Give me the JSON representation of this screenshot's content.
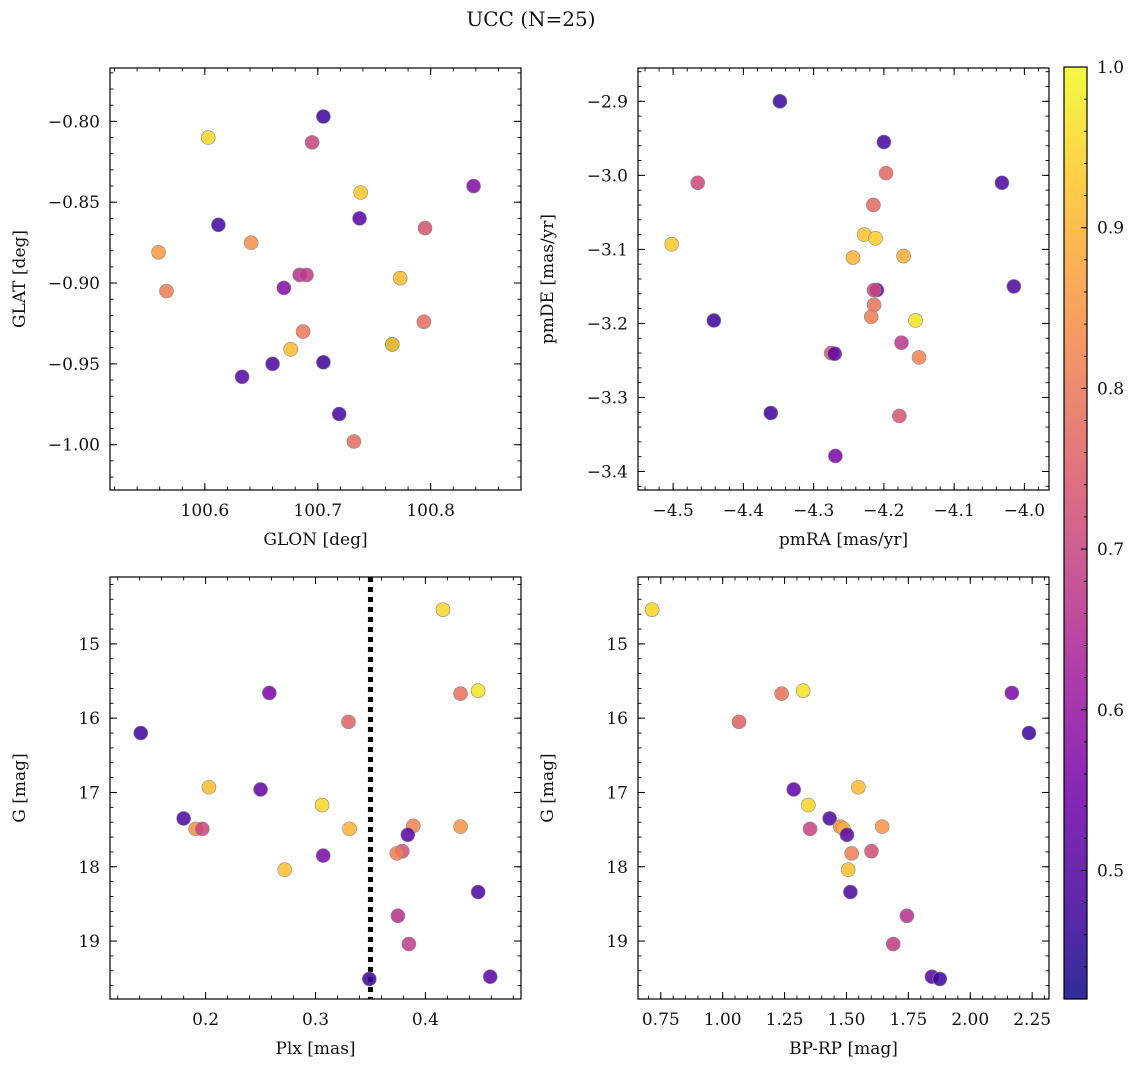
{
  "title": "UCC (N=25)",
  "colorbar": {
    "min": 0.42,
    "max": 1.0,
    "ticks": [
      0.5,
      0.6,
      0.7,
      0.8,
      0.9,
      1.0
    ],
    "tick_labels": [
      "0.5",
      "0.6",
      "0.7",
      "0.8",
      "0.9",
      "1.0"
    ],
    "colormap": "plasma",
    "stops": [
      "#0d0887",
      "#46039f",
      "#7201a8",
      "#9c179e",
      "#bd3786",
      "#d8576b",
      "#ed7953",
      "#fb9f3a",
      "#fdca26",
      "#f0f921"
    ]
  },
  "chart_data": [
    {
      "type": "scatter",
      "name": "position",
      "xlabel": "GLON [deg]",
      "ylabel": "GLAT [deg]",
      "xlim": [
        100.516,
        100.88
      ],
      "ylim": [
        -1.028,
        -0.767
      ],
      "xticks": [
        100.6,
        100.7,
        100.8
      ],
      "xtick_labels": [
        "100.6",
        "100.7",
        "100.8"
      ],
      "yticks": [
        -1.0,
        -0.95,
        -0.9,
        -0.85,
        -0.8
      ],
      "ytick_labels": [
        "−1.00",
        "−0.95",
        "−0.90",
        "−0.85",
        "−0.80"
      ],
      "invert_y": false,
      "points": [
        {
          "x": 100.705,
          "y": -0.797,
          "c": 0.47
        },
        {
          "x": 100.603,
          "y": -0.81,
          "c": 0.95
        },
        {
          "x": 100.695,
          "y": -0.813,
          "c": 0.7
        },
        {
          "x": 100.838,
          "y": -0.84,
          "c": 0.57
        },
        {
          "x": 100.738,
          "y": -0.844,
          "c": 0.93
        },
        {
          "x": 100.612,
          "y": -0.864,
          "c": 0.48
        },
        {
          "x": 100.737,
          "y": -0.86,
          "c": 0.51
        },
        {
          "x": 100.795,
          "y": -0.866,
          "c": 0.73
        },
        {
          "x": 100.559,
          "y": -0.881,
          "c": 0.86
        },
        {
          "x": 100.641,
          "y": -0.875,
          "c": 0.84
        },
        {
          "x": 100.684,
          "y": -0.895,
          "c": 0.66
        },
        {
          "x": 100.69,
          "y": -0.895,
          "c": 0.68
        },
        {
          "x": 100.566,
          "y": -0.905,
          "c": 0.81
        },
        {
          "x": 100.67,
          "y": -0.903,
          "c": 0.57
        },
        {
          "x": 100.773,
          "y": -0.897,
          "c": 0.91
        },
        {
          "x": 100.687,
          "y": -0.93,
          "c": 0.8
        },
        {
          "x": 100.794,
          "y": -0.924,
          "c": 0.78
        },
        {
          "x": 100.676,
          "y": -0.941,
          "c": 0.91
        },
        {
          "x": 100.766,
          "y": -0.938,
          "c": 0.45
        },
        {
          "x": 100.766,
          "y": -0.938,
          "c": 0.95
        },
        {
          "x": 100.633,
          "y": -0.958,
          "c": 0.5
        },
        {
          "x": 100.66,
          "y": -0.95,
          "c": 0.49
        },
        {
          "x": 100.705,
          "y": -0.949,
          "c": 0.47
        },
        {
          "x": 100.719,
          "y": -0.981,
          "c": 0.48
        },
        {
          "x": 100.732,
          "y": -0.998,
          "c": 0.78
        }
      ]
    },
    {
      "type": "scatter",
      "name": "proper-motion",
      "xlabel": "pmRA [mas/yr]",
      "ylabel": "pmDE [mas/yr]",
      "xlim": [
        -4.55,
        -3.965
      ],
      "ylim": [
        -3.425,
        -2.855
      ],
      "xticks": [
        -4.5,
        -4.4,
        -4.3,
        -4.2,
        -4.1,
        -4.0
      ],
      "xtick_labels": [
        "−4.5",
        "−4.4",
        "−4.3",
        "−4.2",
        "−4.1",
        "−4.0"
      ],
      "yticks": [
        -3.4,
        -3.3,
        -3.2,
        -3.1,
        -3.0,
        -2.9
      ],
      "ytick_labels": [
        "−3.4",
        "−3.3",
        "−3.2",
        "−3.1",
        "−3.0",
        "−2.9"
      ],
      "invert_y": false,
      "points": [
        {
          "x": -4.348,
          "y": -2.9,
          "c": 0.47
        },
        {
          "x": -4.2,
          "y": -2.955,
          "c": 0.48
        },
        {
          "x": -4.465,
          "y": -3.01,
          "c": 0.71
        },
        {
          "x": -4.197,
          "y": -2.997,
          "c": 0.77
        },
        {
          "x": -4.032,
          "y": -3.01,
          "c": 0.49
        },
        {
          "x": -4.215,
          "y": -3.04,
          "c": 0.77
        },
        {
          "x": -4.502,
          "y": -3.093,
          "c": 0.93
        },
        {
          "x": -4.228,
          "y": -3.08,
          "c": 0.92
        },
        {
          "x": -4.212,
          "y": -3.085,
          "c": 0.94
        },
        {
          "x": -4.244,
          "y": -3.111,
          "c": 0.9
        },
        {
          "x": -4.172,
          "y": -3.109,
          "c": 0.89
        },
        {
          "x": -4.21,
          "y": -3.155,
          "c": 0.5
        },
        {
          "x": -4.214,
          "y": -3.155,
          "c": 0.71
        },
        {
          "x": -4.015,
          "y": -3.15,
          "c": 0.49
        },
        {
          "x": -4.214,
          "y": -3.175,
          "c": 0.79
        },
        {
          "x": -4.218,
          "y": -3.191,
          "c": 0.81
        },
        {
          "x": -4.442,
          "y": -3.196,
          "c": 0.47
        },
        {
          "x": -4.155,
          "y": -3.196,
          "c": 0.97
        },
        {
          "x": -4.275,
          "y": -3.24,
          "c": 0.73
        },
        {
          "x": -4.27,
          "y": -3.241,
          "c": 0.52
        },
        {
          "x": -4.175,
          "y": -3.226,
          "c": 0.67
        },
        {
          "x": -4.15,
          "y": -3.246,
          "c": 0.82
        },
        {
          "x": -4.361,
          "y": -3.321,
          "c": 0.47
        },
        {
          "x": -4.178,
          "y": -3.325,
          "c": 0.73
        },
        {
          "x": -4.269,
          "y": -3.379,
          "c": 0.56
        }
      ]
    },
    {
      "type": "scatter",
      "name": "parallax-magnitude",
      "xlabel": "Plx [mas]",
      "ylabel": "G [mag]",
      "xlim": [
        0.113,
        0.487
      ],
      "ylim": [
        14.1,
        19.78
      ],
      "xticks": [
        0.2,
        0.3,
        0.4
      ],
      "xtick_labels": [
        "0.2",
        "0.3",
        "0.4"
      ],
      "yticks": [
        15,
        16,
        17,
        18,
        19
      ],
      "ytick_labels": [
        "15",
        "16",
        "17",
        "18",
        "19"
      ],
      "invert_y": true,
      "vline": {
        "x": 0.35,
        "style": "dotted"
      },
      "points": [
        {
          "x": 0.416,
          "y": 14.54,
          "c": 0.95
        },
        {
          "x": 0.448,
          "y": 15.63,
          "c": 0.97
        },
        {
          "x": 0.432,
          "y": 15.67,
          "c": 0.79
        },
        {
          "x": 0.258,
          "y": 15.66,
          "c": 0.56
        },
        {
          "x": 0.141,
          "y": 16.2,
          "c": 0.47
        },
        {
          "x": 0.33,
          "y": 16.05,
          "c": 0.76
        },
        {
          "x": 0.203,
          "y": 16.93,
          "c": 0.91
        },
        {
          "x": 0.25,
          "y": 16.96,
          "c": 0.52
        },
        {
          "x": 0.306,
          "y": 17.17,
          "c": 0.95
        },
        {
          "x": 0.18,
          "y": 17.35,
          "c": 0.49
        },
        {
          "x": 0.191,
          "y": 17.49,
          "c": 0.84
        },
        {
          "x": 0.197,
          "y": 17.49,
          "c": 0.7
        },
        {
          "x": 0.331,
          "y": 17.49,
          "c": 0.9
        },
        {
          "x": 0.389,
          "y": 17.45,
          "c": 0.82
        },
        {
          "x": 0.432,
          "y": 17.46,
          "c": 0.85
        },
        {
          "x": 0.384,
          "y": 17.57,
          "c": 0.51
        },
        {
          "x": 0.379,
          "y": 17.79,
          "c": 0.72
        },
        {
          "x": 0.374,
          "y": 17.82,
          "c": 0.81
        },
        {
          "x": 0.307,
          "y": 17.85,
          "c": 0.56
        },
        {
          "x": 0.272,
          "y": 18.04,
          "c": 0.92
        },
        {
          "x": 0.448,
          "y": 18.34,
          "c": 0.49
        },
        {
          "x": 0.375,
          "y": 18.66,
          "c": 0.66
        },
        {
          "x": 0.385,
          "y": 19.04,
          "c": 0.68
        },
        {
          "x": 0.349,
          "y": 19.51,
          "c": 0.47
        },
        {
          "x": 0.459,
          "y": 19.48,
          "c": 0.51
        }
      ]
    },
    {
      "type": "scatter",
      "name": "color-magnitude",
      "xlabel": "BP-RP [mag]",
      "ylabel": "G [mag]",
      "xlim": [
        0.658,
        2.318
      ],
      "ylim": [
        14.1,
        19.78
      ],
      "xticks": [
        0.75,
        1.0,
        1.25,
        1.5,
        1.75,
        2.0,
        2.25
      ],
      "xtick_labels": [
        "0.75",
        "1.00",
        "1.25",
        "1.50",
        "1.75",
        "2.00",
        "2.25"
      ],
      "yticks": [
        15,
        16,
        17,
        18,
        19
      ],
      "ytick_labels": [
        "15",
        "16",
        "17",
        "18",
        "19"
      ],
      "invert_y": true,
      "points": [
        {
          "x": 0.715,
          "y": 14.54,
          "c": 0.95
        },
        {
          "x": 1.325,
          "y": 15.63,
          "c": 0.97
        },
        {
          "x": 1.238,
          "y": 15.67,
          "c": 0.79
        },
        {
          "x": 2.168,
          "y": 15.66,
          "c": 0.56
        },
        {
          "x": 1.066,
          "y": 16.05,
          "c": 0.76
        },
        {
          "x": 2.237,
          "y": 16.2,
          "c": 0.47
        },
        {
          "x": 1.548,
          "y": 16.93,
          "c": 0.91
        },
        {
          "x": 1.287,
          "y": 16.96,
          "c": 0.52
        },
        {
          "x": 1.346,
          "y": 17.17,
          "c": 0.95
        },
        {
          "x": 1.432,
          "y": 17.35,
          "c": 0.49
        },
        {
          "x": 1.353,
          "y": 17.49,
          "c": 0.7
        },
        {
          "x": 1.475,
          "y": 17.46,
          "c": 0.84
        },
        {
          "x": 1.488,
          "y": 17.49,
          "c": 0.9
        },
        {
          "x": 1.502,
          "y": 17.57,
          "c": 0.51
        },
        {
          "x": 1.644,
          "y": 17.46,
          "c": 0.85
        },
        {
          "x": 1.601,
          "y": 17.79,
          "c": 0.72
        },
        {
          "x": 1.521,
          "y": 17.82,
          "c": 0.81
        },
        {
          "x": 1.507,
          "y": 18.04,
          "c": 0.92
        },
        {
          "x": 1.516,
          "y": 18.34,
          "c": 0.49
        },
        {
          "x": 1.744,
          "y": 18.66,
          "c": 0.66
        },
        {
          "x": 1.689,
          "y": 19.04,
          "c": 0.68
        },
        {
          "x": 1.845,
          "y": 19.48,
          "c": 0.51
        },
        {
          "x": 1.877,
          "y": 19.51,
          "c": 0.47
        }
      ]
    }
  ]
}
